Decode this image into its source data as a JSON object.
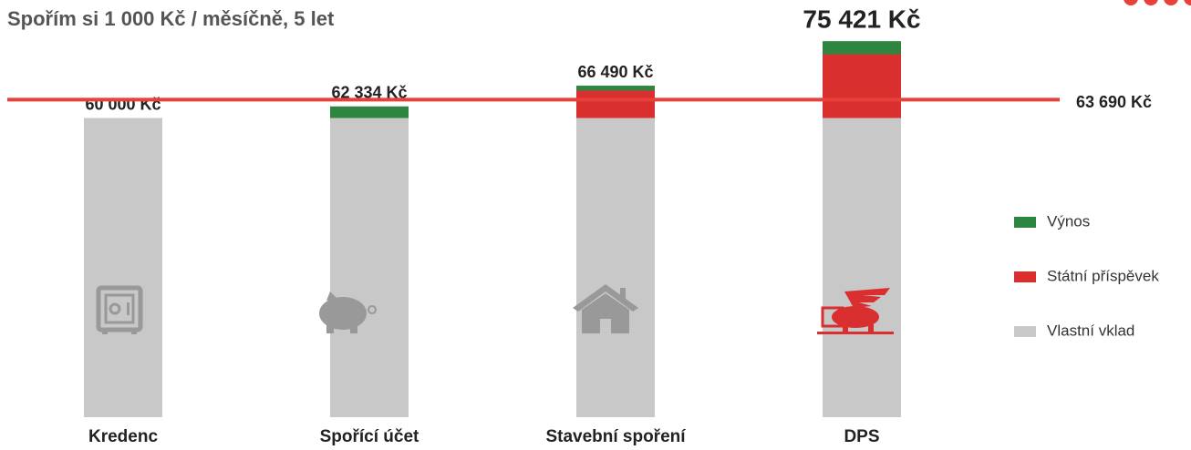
{
  "chart_data": {
    "type": "stacked_bar",
    "title": "Spořím si 1 000 Kč / měsíčně, 5 let",
    "categories": [
      "Kredenc",
      "Spořící účet",
      "Stavební spoření",
      "DPS"
    ],
    "series": [
      {
        "name": "Vlastní vklad",
        "color": "#c8c8c8",
        "values": [
          60000,
          60000,
          60000,
          60000
        ]
      },
      {
        "name": "Státní příspěvek",
        "color": "#da2f2f",
        "values": [
          0,
          0,
          5500,
          12800
        ]
      },
      {
        "name": "Výnos",
        "color": "#2e8540",
        "values": [
          0,
          2334,
          990,
          2621
        ]
      }
    ],
    "totals": [
      60000,
      62334,
      66490,
      75421
    ],
    "total_labels": [
      "60 000 Kč",
      "62 334 Kč",
      "66 490 Kč",
      "75 421 Kč"
    ],
    "reference_line": {
      "value": 63690,
      "label": "63 690 Kč",
      "color": "#e8403a"
    },
    "ylim": [
      0,
      76000
    ]
  }
}
